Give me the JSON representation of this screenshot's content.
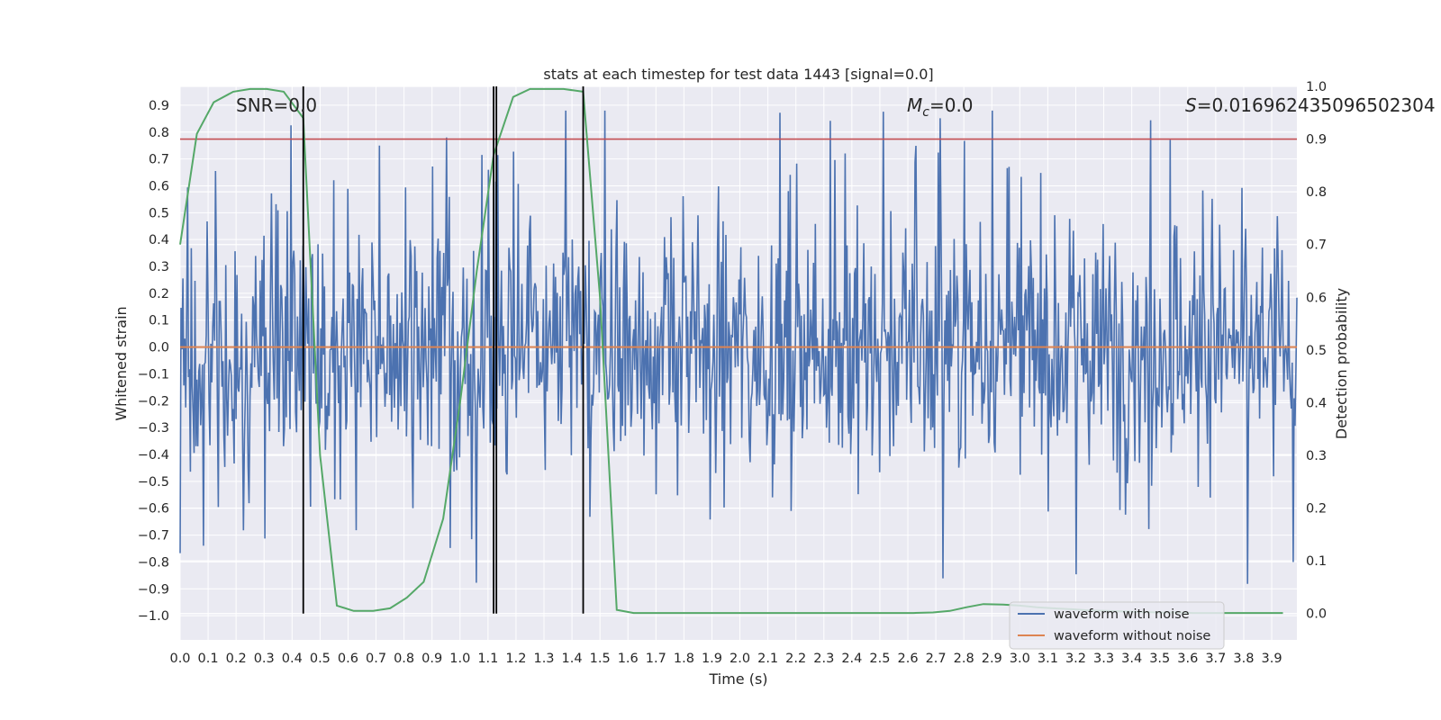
{
  "chart_data": {
    "type": "line",
    "title": "stats at each timestep for test data 1443 [signal=0.0]",
    "xlabel": "Time (s)",
    "ylabel": "Whitened strain",
    "y2label": "Detection probability",
    "xlim": [
      0.0,
      3.99
    ],
    "ylim": [
      -1.09,
      0.97
    ],
    "y2lim": [
      -0.05,
      1.0
    ],
    "x_ticks": [
      "0.0",
      "0.1",
      "0.2",
      "0.3",
      "0.4",
      "0.5",
      "0.6",
      "0.7",
      "0.8",
      "0.9",
      "1.0",
      "1.1",
      "1.2",
      "1.3",
      "1.4",
      "1.5",
      "1.6",
      "1.7",
      "1.8",
      "1.9",
      "2.0",
      "2.1",
      "2.2",
      "2.3",
      "2.4",
      "2.5",
      "2.6",
      "2.7",
      "2.8",
      "2.9",
      "3.0",
      "3.1",
      "3.2",
      "3.3",
      "3.4",
      "3.5",
      "3.6",
      "3.7",
      "3.8",
      "3.9"
    ],
    "y_ticks": [
      "0.9",
      "0.8",
      "0.7",
      "0.6",
      "0.5",
      "0.4",
      "0.3",
      "0.2",
      "0.1",
      "0.0",
      "−0.1",
      "−0.2",
      "−0.3",
      "−0.4",
      "−0.5",
      "−0.6",
      "−0.7",
      "−0.8",
      "−0.9",
      "−1.0"
    ],
    "y2_ticks": [
      "1.0",
      "0.9",
      "0.8",
      "0.7",
      "0.6",
      "0.5",
      "0.4",
      "0.3",
      "0.2",
      "0.1",
      "0.0"
    ],
    "annotations": {
      "snr": "SNR=0.0",
      "mc": "M",
      "mc_sub": "c",
      "mc_value": "=0.0",
      "s": "S",
      "s_value": "=0.016962435096502304"
    },
    "threshold": 0.9,
    "vertical_lines": [
      0.44,
      1.12,
      1.13,
      1.44
    ],
    "series": [
      {
        "name": "waveform with noise",
        "color": "#4c72b0",
        "noise_amplitude": 0.26,
        "peak_max": 0.88,
        "peak_min": -0.95,
        "samples": 1200
      },
      {
        "name": "waveform without noise",
        "color": "#dd8452",
        "values": [
          0.0,
          0.0
        ]
      },
      {
        "name": "detection probability",
        "color": "#55a868",
        "x": [
          0.0,
          0.06,
          0.12,
          0.19,
          0.25,
          0.31,
          0.37,
          0.44,
          0.5,
          0.56,
          0.62,
          0.69,
          0.75,
          0.81,
          0.87,
          0.94,
          1.0,
          1.06,
          1.12,
          1.19,
          1.25,
          1.31,
          1.37,
          1.44,
          1.5,
          1.56,
          1.62,
          1.69,
          1.75,
          1.81,
          1.87,
          1.94,
          2.0,
          2.06,
          2.12,
          2.19,
          2.25,
          2.31,
          2.37,
          2.44,
          2.5,
          2.56,
          2.62,
          2.69,
          2.75,
          2.81,
          2.87,
          2.94,
          3.0,
          3.06,
          3.12,
          3.19,
          3.25,
          3.31,
          3.37,
          3.44,
          3.5,
          3.56,
          3.62,
          3.69,
          3.75,
          3.81,
          3.87,
          3.94
        ],
        "values": [
          0.7,
          0.91,
          0.97,
          0.99,
          0.995,
          0.995,
          0.99,
          0.94,
          0.3,
          0.015,
          0.005,
          0.005,
          0.01,
          0.03,
          0.06,
          0.18,
          0.4,
          0.65,
          0.87,
          0.98,
          0.995,
          0.995,
          0.995,
          0.99,
          0.6,
          0.007,
          0.001,
          0.001,
          0.001,
          0.001,
          0.001,
          0.001,
          0.001,
          0.001,
          0.001,
          0.001,
          0.001,
          0.001,
          0.001,
          0.001,
          0.001,
          0.001,
          0.001,
          0.002,
          0.005,
          0.012,
          0.018,
          0.017,
          0.015,
          0.012,
          0.01,
          0.008,
          0.006,
          0.005,
          0.004,
          0.003,
          0.002,
          0.002,
          0.001,
          0.001,
          0.001,
          0.001,
          0.001,
          0.001
        ]
      }
    ],
    "legend": {
      "position": "lower-right",
      "entries": [
        "waveform with noise",
        "waveform without noise"
      ]
    },
    "grid": true,
    "colors": {
      "background": "#eaeaf2",
      "grid": "#ffffff",
      "threshold": "#c44e52",
      "vlines": "#000000"
    }
  }
}
